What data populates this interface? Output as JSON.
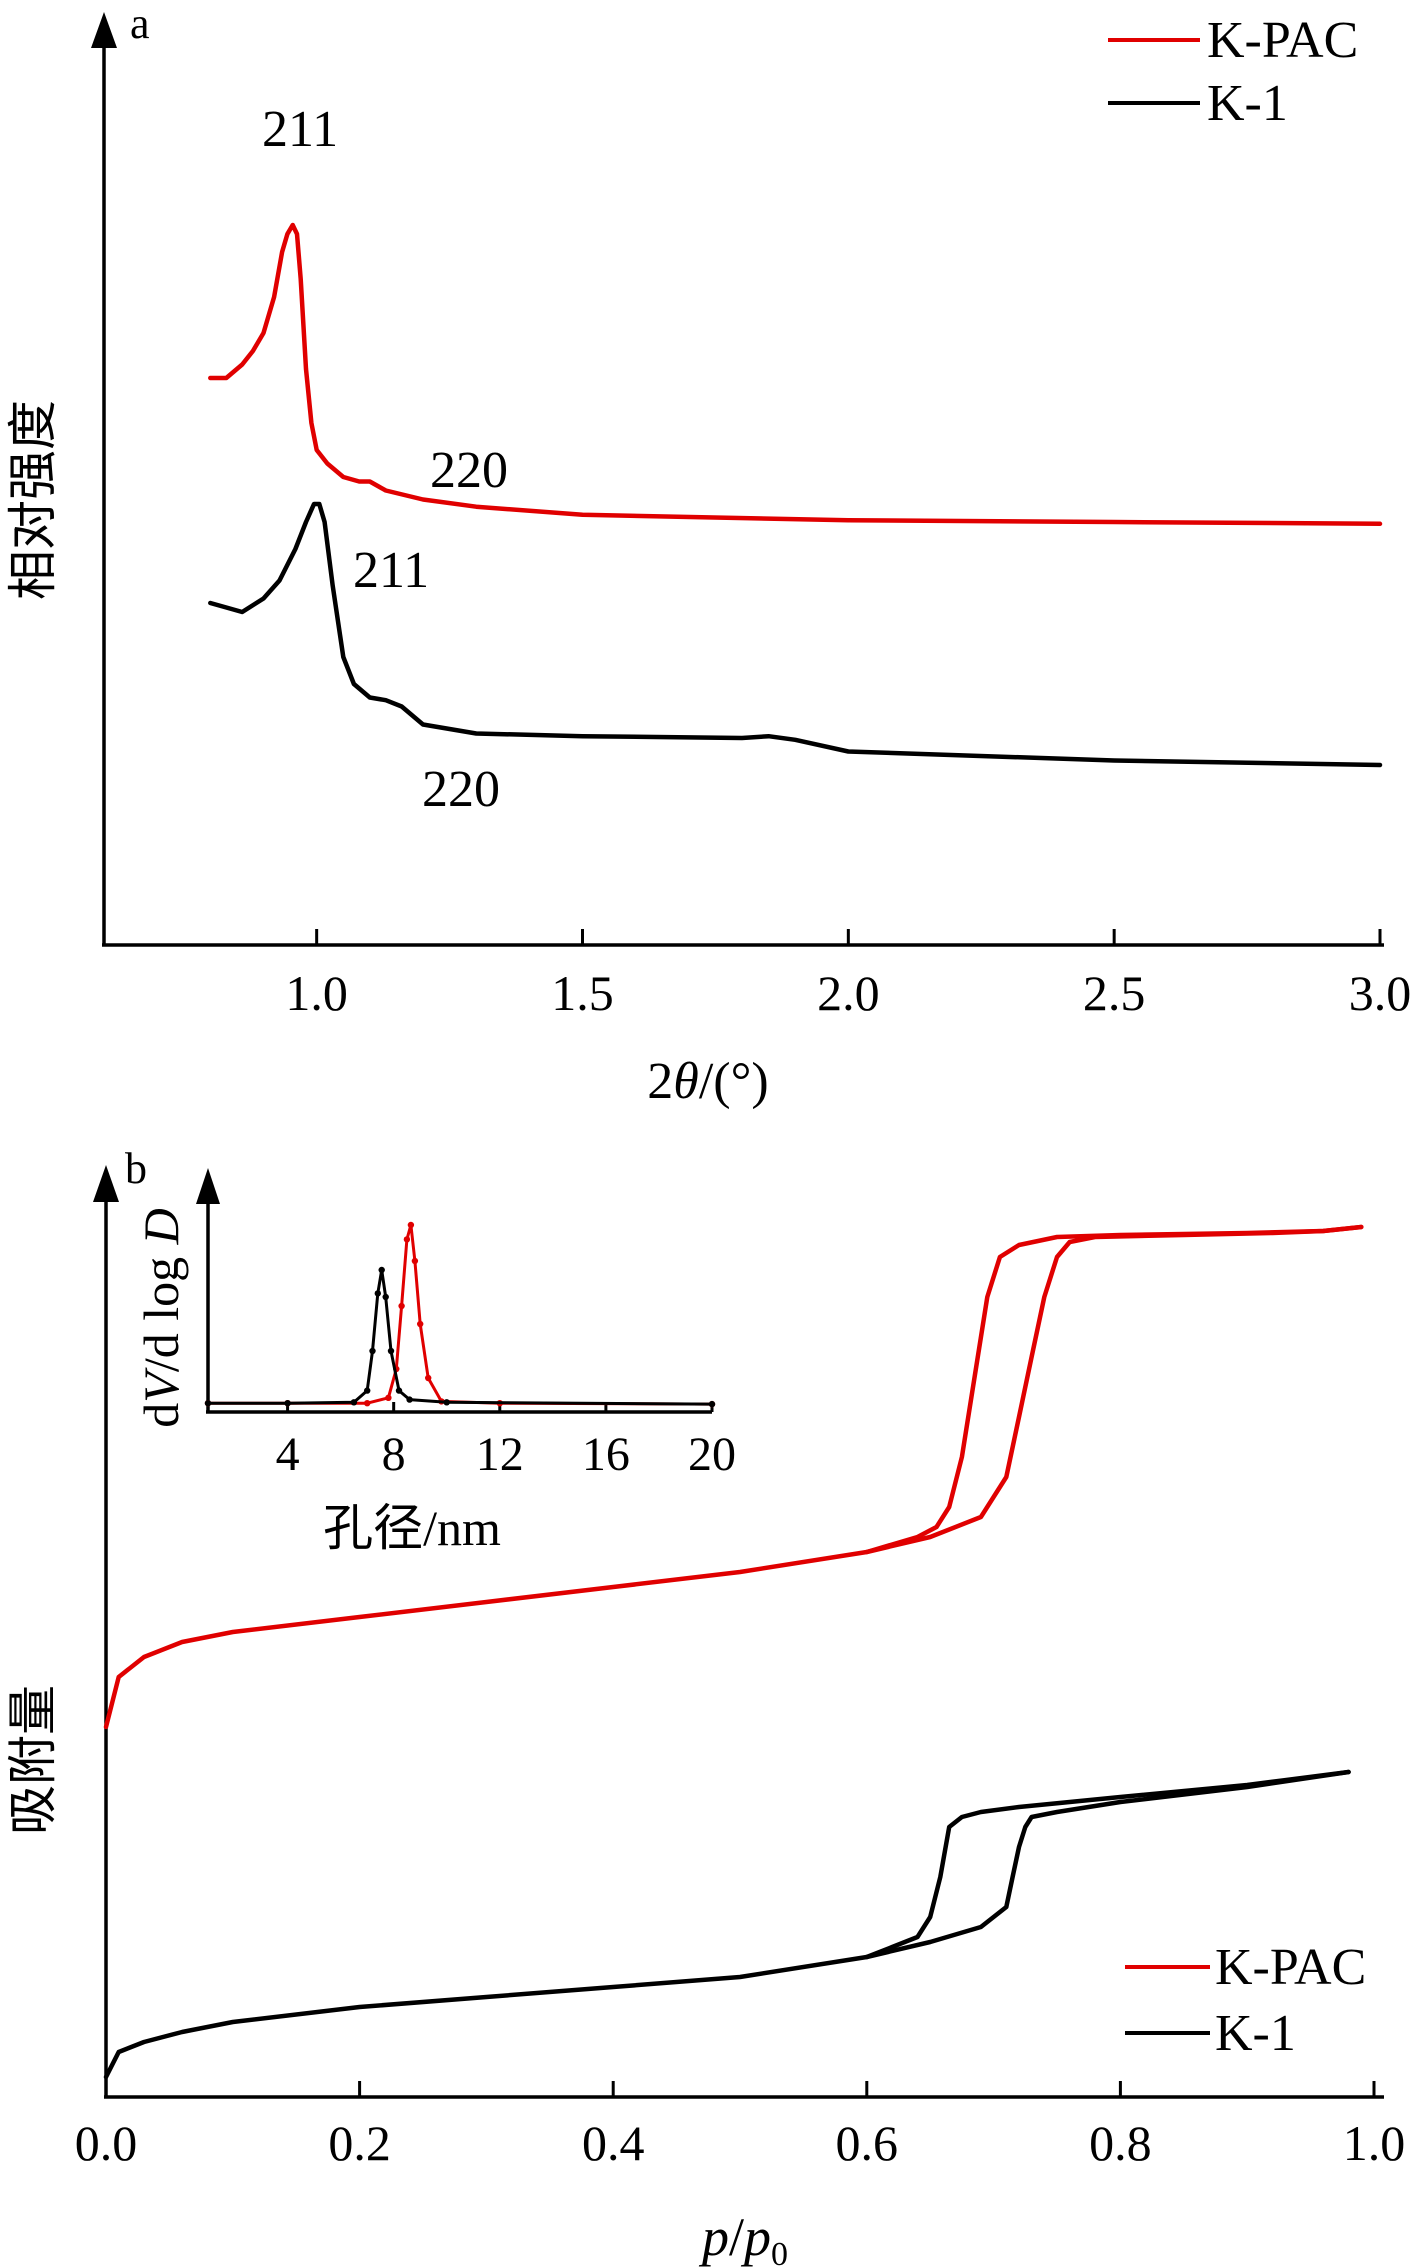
{
  "colors": {
    "kpac": "#e00000",
    "k1": "#000000"
  },
  "chart_data": [
    {
      "panel": "a",
      "type": "line",
      "xlabel_prefix": "2",
      "xlabel_theta": "θ",
      "xlabel_suffix": "/(°)",
      "ylabel": "相对强度",
      "xlim": [
        0.6,
        3.0
      ],
      "x_ticks": [
        "1.0",
        "1.5",
        "2.0",
        "2.5",
        "3.0"
      ],
      "legend_position": "top-right",
      "series": [
        {
          "name": "K-PAC",
          "color": "#e00000",
          "x": [
            0.8,
            0.83,
            0.86,
            0.88,
            0.9,
            0.92,
            0.935,
            0.945,
            0.955,
            0.963,
            0.97,
            0.98,
            0.99,
            1.0,
            1.02,
            1.05,
            1.08,
            1.1,
            1.13,
            1.2,
            1.3,
            1.5,
            2.0,
            2.5,
            3.0
          ],
          "y": [
            0.63,
            0.63,
            0.645,
            0.66,
            0.68,
            0.72,
            0.77,
            0.79,
            0.8,
            0.79,
            0.74,
            0.64,
            0.58,
            0.55,
            0.535,
            0.52,
            0.515,
            0.515,
            0.505,
            0.495,
            0.487,
            0.478,
            0.472,
            0.47,
            0.468
          ]
        },
        {
          "name": "K-1",
          "color": "#000000",
          "x": [
            0.8,
            0.83,
            0.86,
            0.9,
            0.93,
            0.96,
            0.98,
            0.995,
            1.005,
            1.015,
            1.03,
            1.05,
            1.07,
            1.1,
            1.13,
            1.16,
            1.2,
            1.3,
            1.5,
            1.8,
            1.85,
            1.9,
            2.0,
            2.5,
            3.0
          ],
          "y": [
            0.38,
            0.375,
            0.37,
            0.385,
            0.405,
            0.44,
            0.47,
            0.49,
            0.49,
            0.47,
            0.4,
            0.32,
            0.29,
            0.275,
            0.272,
            0.265,
            0.245,
            0.235,
            0.232,
            0.23,
            0.232,
            0.228,
            0.215,
            0.205,
            0.2
          ]
        }
      ],
      "annotations": [
        {
          "text": "211",
          "series": "K-PAC"
        },
        {
          "text": "220",
          "series": "K-PAC"
        },
        {
          "text": "211",
          "series": "K-1"
        },
        {
          "text": "220",
          "series": "K-1"
        }
      ]
    },
    {
      "panel": "b",
      "type": "line",
      "xlabel_p": "p",
      "xlabel_slash": "/",
      "xlabel_p0": "p",
      "xlabel_sub": "0",
      "ylabel": "吸附量",
      "xlim": [
        0.0,
        1.0
      ],
      "x_ticks": [
        "0.0",
        "0.2",
        "0.4",
        "0.6",
        "0.8",
        "1.0"
      ],
      "legend_position": "bottom-right",
      "series": [
        {
          "name": "K-PAC",
          "color": "#e00000",
          "adsorption": {
            "x": [
              0.0,
              0.01,
              0.03,
              0.06,
              0.1,
              0.2,
              0.3,
              0.4,
              0.5,
              0.6,
              0.65,
              0.69,
              0.71,
              0.72,
              0.73,
              0.74,
              0.75,
              0.76,
              0.78,
              0.85,
              0.92,
              0.96,
              0.99
            ],
            "y": [
              0.37,
              0.42,
              0.44,
              0.455,
              0.465,
              0.48,
              0.495,
              0.51,
              0.525,
              0.545,
              0.56,
              0.58,
              0.62,
              0.68,
              0.74,
              0.8,
              0.84,
              0.855,
              0.86,
              0.862,
              0.864,
              0.866,
              0.87
            ]
          },
          "desorption": {
            "x": [
              0.99,
              0.96,
              0.9,
              0.8,
              0.75,
              0.72,
              0.705,
              0.695,
              0.685,
              0.675,
              0.665,
              0.655,
              0.64,
              0.6
            ],
            "y": [
              0.87,
              0.866,
              0.864,
              0.862,
              0.86,
              0.852,
              0.84,
              0.8,
              0.72,
              0.64,
              0.59,
              0.57,
              0.56,
              0.545
            ]
          }
        },
        {
          "name": "K-1",
          "color": "#000000",
          "adsorption": {
            "x": [
              0.0,
              0.01,
              0.03,
              0.06,
              0.1,
              0.2,
              0.3,
              0.4,
              0.5,
              0.6,
              0.65,
              0.69,
              0.71,
              0.715,
              0.72,
              0.725,
              0.73,
              0.75,
              0.8,
              0.9,
              0.98
            ],
            "y": [
              0.02,
              0.045,
              0.055,
              0.065,
              0.075,
              0.09,
              0.1,
              0.11,
              0.12,
              0.14,
              0.155,
              0.17,
              0.19,
              0.22,
              0.25,
              0.27,
              0.28,
              0.285,
              0.295,
              0.31,
              0.325
            ]
          },
          "desorption": {
            "x": [
              0.98,
              0.9,
              0.8,
              0.72,
              0.69,
              0.675,
              0.665,
              0.658,
              0.65,
              0.64,
              0.62,
              0.6
            ],
            "y": [
              0.325,
              0.312,
              0.3,
              0.29,
              0.285,
              0.28,
              0.27,
              0.22,
              0.18,
              0.16,
              0.15,
              0.14
            ]
          }
        }
      ],
      "inset": {
        "type": "line",
        "xlabel": "孔径/nm",
        "ylabel_d": "d",
        "ylabel_V": "V",
        "ylabel_mid": "/d log ",
        "ylabel_D": "D",
        "xlim": [
          1,
          20
        ],
        "x_ticks": [
          "4",
          "8",
          "12",
          "16",
          "20"
        ],
        "series": [
          {
            "name": "K-PAC",
            "color": "#e00000",
            "x": [
              1,
              4,
              7,
              7.8,
              8.1,
              8.3,
              8.5,
              8.65,
              8.8,
              9.0,
              9.3,
              9.8,
              12,
              20
            ],
            "y": [
              0.01,
              0.01,
              0.01,
              0.04,
              0.2,
              0.55,
              0.92,
              1.0,
              0.8,
              0.45,
              0.15,
              0.02,
              0.01,
              0.005
            ]
          },
          {
            "name": "K-1",
            "color": "#000000",
            "x": [
              1,
              4,
              6.5,
              7.0,
              7.2,
              7.4,
              7.55,
              7.7,
              7.9,
              8.2,
              8.6,
              10,
              20
            ],
            "y": [
              0.01,
              0.01,
              0.015,
              0.08,
              0.3,
              0.62,
              0.75,
              0.6,
              0.3,
              0.08,
              0.03,
              0.015,
              0.005
            ]
          }
        ]
      }
    }
  ],
  "panel_labels": {
    "a": "a",
    "b": "b"
  }
}
